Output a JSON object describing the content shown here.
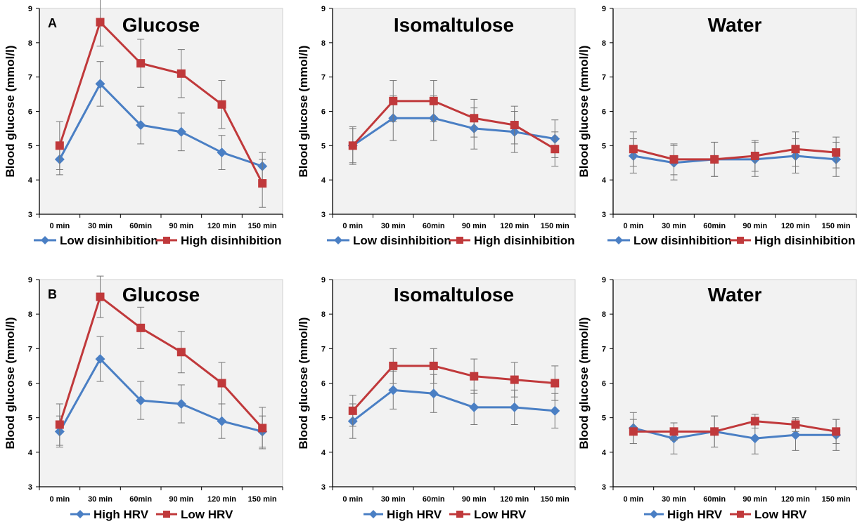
{
  "categories": [
    "0 min",
    "30 min",
    "60min",
    "90 min",
    "120 min",
    "150 min"
  ],
  "colors": {
    "blue": "#4a7fc4",
    "red": "#c0393b",
    "panel_bg": "#f2f2f2"
  },
  "chart_data": [
    {
      "type": "line",
      "row_label": "A",
      "title": "Glucose",
      "ylabel": "Blood glucose (mmol/l)",
      "ylim": [
        3,
        9
      ],
      "series": [
        {
          "name": "Low disinhibition",
          "color": "#4a7fc4",
          "marker": "diamond",
          "values": [
            4.6,
            6.8,
            5.6,
            5.4,
            4.8,
            4.4
          ],
          "errors": [
            0.45,
            0.65,
            0.55,
            0.55,
            0.5,
            0.4
          ]
        },
        {
          "name": "High disinhibition",
          "color": "#c0393b",
          "marker": "square",
          "values": [
            5.0,
            8.6,
            7.4,
            7.1,
            6.2,
            3.9
          ],
          "errors": [
            0.7,
            0.7,
            0.7,
            0.7,
            0.7,
            0.7
          ]
        }
      ]
    },
    {
      "type": "line",
      "row_label": "",
      "title": "Isomaltulose",
      "ylabel": "Blood glucose (mmol/l)",
      "ylim": [
        3,
        9
      ],
      "series": [
        {
          "name": "Low disinhibition",
          "color": "#4a7fc4",
          "marker": "diamond",
          "values": [
            5.0,
            5.8,
            5.8,
            5.5,
            5.4,
            5.2
          ],
          "errors": [
            0.5,
            0.65,
            0.65,
            0.6,
            0.6,
            0.55
          ]
        },
        {
          "name": "High disinhibition",
          "color": "#c0393b",
          "marker": "square",
          "values": [
            5.0,
            6.3,
            6.3,
            5.8,
            5.6,
            4.9
          ],
          "errors": [
            0.55,
            0.6,
            0.6,
            0.55,
            0.55,
            0.5
          ]
        }
      ]
    },
    {
      "type": "line",
      "row_label": "",
      "title": "Water",
      "ylabel": "Blood glucose (mmol/l)",
      "ylim": [
        3,
        9
      ],
      "series": [
        {
          "name": "Low disinhibition",
          "color": "#4a7fc4",
          "marker": "diamond",
          "values": [
            4.7,
            4.5,
            4.6,
            4.6,
            4.7,
            4.6
          ],
          "errors": [
            0.5,
            0.5,
            0.5,
            0.5,
            0.5,
            0.5
          ]
        },
        {
          "name": "High disinhibition",
          "color": "#c0393b",
          "marker": "square",
          "values": [
            4.9,
            4.6,
            4.6,
            4.7,
            4.9,
            4.8
          ],
          "errors": [
            0.5,
            0.45,
            0.5,
            0.45,
            0.5,
            0.45
          ]
        }
      ]
    },
    {
      "type": "line",
      "row_label": "B",
      "title": "Glucose",
      "ylabel": "Blood glucose (mmol/l)",
      "ylim": [
        3,
        9
      ],
      "series": [
        {
          "name": "High HRV",
          "color": "#4a7fc4",
          "marker": "diamond",
          "values": [
            4.6,
            6.7,
            5.5,
            5.4,
            4.9,
            4.6
          ],
          "errors": [
            0.45,
            0.65,
            0.55,
            0.55,
            0.5,
            0.45
          ]
        },
        {
          "name": "Low HRV",
          "color": "#c0393b",
          "marker": "square",
          "values": [
            4.8,
            8.5,
            7.6,
            6.9,
            6.0,
            4.7
          ],
          "errors": [
            0.6,
            0.6,
            0.6,
            0.6,
            0.6,
            0.6
          ]
        }
      ]
    },
    {
      "type": "line",
      "row_label": "",
      "title": "Isomaltulose",
      "ylabel": "Blood glucose (mmol/l)",
      "ylim": [
        3,
        9
      ],
      "series": [
        {
          "name": "High HRV",
          "color": "#4a7fc4",
          "marker": "diamond",
          "values": [
            4.9,
            5.8,
            5.7,
            5.3,
            5.3,
            5.2
          ],
          "errors": [
            0.5,
            0.55,
            0.55,
            0.5,
            0.5,
            0.5
          ]
        },
        {
          "name": "Low HRV",
          "color": "#c0393b",
          "marker": "square",
          "values": [
            5.2,
            6.5,
            6.5,
            6.2,
            6.1,
            6.0
          ],
          "errors": [
            0.45,
            0.5,
            0.5,
            0.5,
            0.5,
            0.5
          ]
        }
      ]
    },
    {
      "type": "line",
      "row_label": "",
      "title": "Water",
      "ylabel": "Blood glucose (mmol/l)",
      "ylim": [
        3,
        9
      ],
      "series": [
        {
          "name": "High HRV",
          "color": "#4a7fc4",
          "marker": "diamond",
          "values": [
            4.7,
            4.4,
            4.6,
            4.4,
            4.5,
            4.5
          ],
          "errors": [
            0.45,
            0.45,
            0.45,
            0.45,
            0.45,
            0.45
          ]
        },
        {
          "name": "Low HRV",
          "color": "#c0393b",
          "marker": "square",
          "values": [
            4.6,
            4.6,
            4.6,
            4.9,
            4.8,
            4.6
          ],
          "errors": [
            0.35,
            0.25,
            0.45,
            0.2,
            0.2,
            0.35
          ]
        }
      ]
    }
  ]
}
